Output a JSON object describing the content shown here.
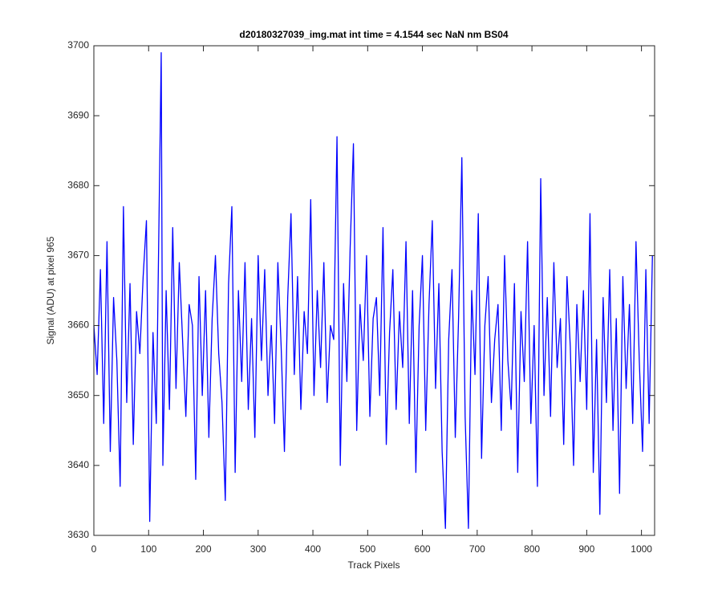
{
  "chart_data": {
    "type": "line",
    "title": "d20180327039_img.mat int time = 4.1544 sec  NaN nm BS04",
    "xlabel": "Track Pixels",
    "ylabel": "Signal (ADU) at pixel 965",
    "xlim": [
      0,
      1024
    ],
    "ylim": [
      3630,
      3700
    ],
    "xticks": [
      0,
      100,
      200,
      300,
      400,
      500,
      600,
      700,
      800,
      900,
      1000
    ],
    "yticks": [
      3630,
      3640,
      3650,
      3660,
      3670,
      3680,
      3690,
      3700
    ],
    "grid": false,
    "x": [
      0,
      6,
      12,
      18,
      24,
      30,
      36,
      42,
      48,
      54,
      60,
      66,
      72,
      78,
      84,
      90,
      96,
      102,
      108,
      114,
      123,
      126,
      132,
      138,
      144,
      150,
      156,
      162,
      168,
      174,
      180,
      186,
      192,
      198,
      204,
      210,
      216,
      222,
      228,
      234,
      240,
      246,
      252,
      258,
      264,
      270,
      276,
      282,
      288,
      294,
      300,
      306,
      312,
      318,
      324,
      330,
      336,
      342,
      348,
      354,
      360,
      366,
      372,
      378,
      384,
      390,
      396,
      402,
      408,
      414,
      420,
      426,
      432,
      438,
      444,
      450,
      456,
      462,
      468,
      474,
      480,
      486,
      492,
      498,
      504,
      510,
      516,
      522,
      528,
      534,
      540,
      546,
      552,
      558,
      564,
      570,
      576,
      582,
      588,
      594,
      600,
      606,
      612,
      618,
      624,
      630,
      636,
      642,
      648,
      654,
      660,
      666,
      672,
      678,
      684,
      690,
      696,
      702,
      708,
      714,
      720,
      726,
      732,
      738,
      744,
      750,
      756,
      762,
      768,
      774,
      780,
      786,
      792,
      798,
      804,
      810,
      816,
      822,
      828,
      834,
      840,
      846,
      852,
      858,
      864,
      870,
      876,
      882,
      888,
      894,
      900,
      906,
      912,
      918,
      924,
      930,
      936,
      942,
      948,
      954,
      960,
      966,
      972,
      978,
      984,
      990,
      996,
      1002,
      1008,
      1014,
      1020
    ],
    "series": [
      {
        "name": "signal",
        "color": "#0000ff",
        "values": [
          3660,
          3653,
          3668,
          3646,
          3672,
          3642,
          3664,
          3655,
          3637,
          3677,
          3649,
          3666,
          3643,
          3662,
          3656,
          3667,
          3675,
          3632,
          3659,
          3646,
          3699,
          3640,
          3665,
          3648,
          3674,
          3651,
          3669,
          3658,
          3647,
          3663,
          3660,
          3638,
          3667,
          3650,
          3665,
          3644,
          3661,
          3670,
          3656,
          3649,
          3635,
          3666,
          3677,
          3639,
          3665,
          3652,
          3669,
          3648,
          3661,
          3644,
          3670,
          3655,
          3668,
          3650,
          3660,
          3646,
          3669,
          3657,
          3642,
          3664,
          3676,
          3653,
          3667,
          3648,
          3662,
          3656,
          3678,
          3650,
          3665,
          3654,
          3669,
          3649,
          3660,
          3658,
          3687,
          3640,
          3666,
          3652,
          3671,
          3686,
          3645,
          3663,
          3655,
          3670,
          3647,
          3661,
          3664,
          3650,
          3674,
          3643,
          3659,
          3668,
          3648,
          3662,
          3654,
          3672,
          3646,
          3665,
          3639,
          3660,
          3670,
          3645,
          3663,
          3675,
          3651,
          3666,
          3642,
          3631,
          3658,
          3668,
          3644,
          3661,
          3684,
          3647,
          3631,
          3665,
          3653,
          3676,
          3641,
          3660,
          3667,
          3649,
          3658,
          3663,
          3645,
          3670,
          3655,
          3648,
          3666,
          3639,
          3662,
          3652,
          3672,
          3646,
          3660,
          3637,
          3681,
          3650,
          3664,
          3647,
          3669,
          3654,
          3661,
          3643,
          3667,
          3657,
          3640,
          3663,
          3652,
          3665,
          3648,
          3676,
          3639,
          3658,
          3633,
          3664,
          3649,
          3668,
          3645,
          3661,
          3636,
          3667,
          3651,
          3663,
          3646,
          3672,
          3655,
          3642,
          3668,
          3646,
          3670
        ]
      }
    ]
  }
}
